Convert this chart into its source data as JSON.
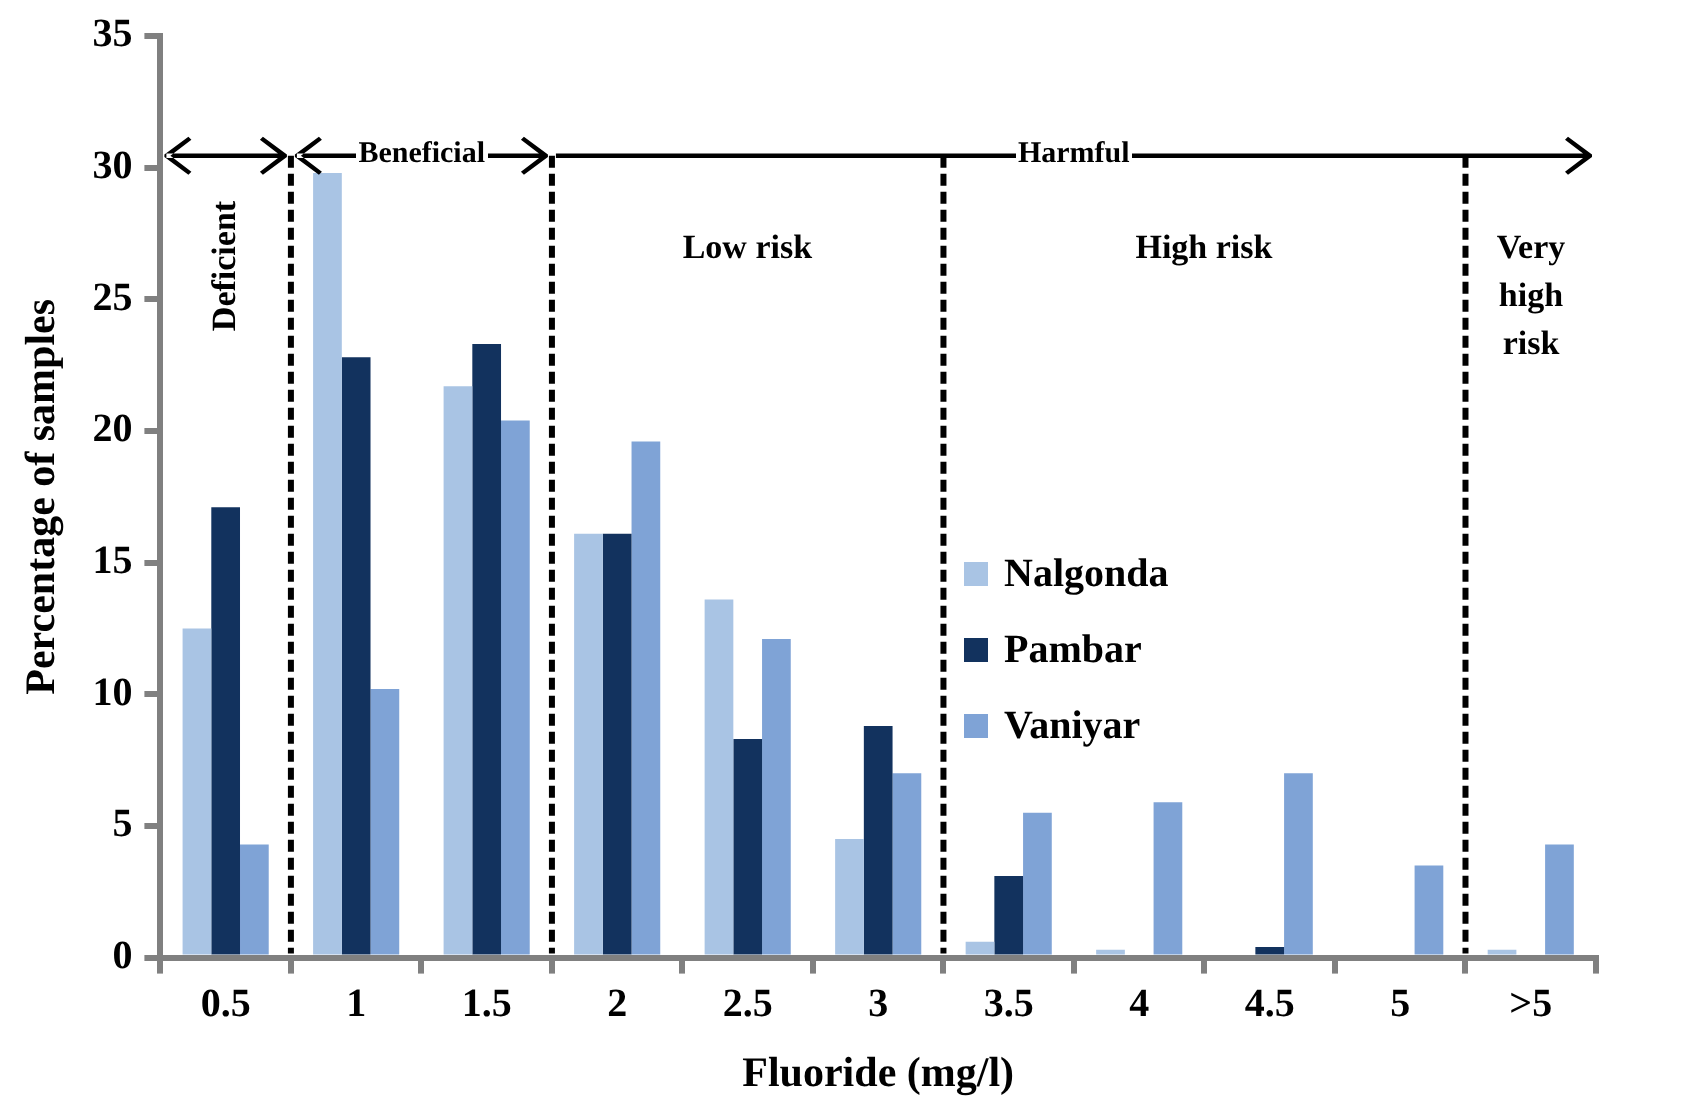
{
  "chart_data": {
    "type": "bar",
    "xlabel": "Fluoride (mg/l)",
    "ylabel": "Percentage of samples",
    "categories": [
      "0.5",
      "1",
      "1.5",
      "2",
      "2.5",
      "3",
      "3.5",
      "4",
      "4.5",
      "5",
      ">5"
    ],
    "series": [
      {
        "name": "Nalgonda",
        "color": "#a9c4e4",
        "values": [
          12.5,
          29.8,
          21.7,
          16.1,
          13.6,
          4.5,
          0.6,
          0.3,
          0,
          0,
          0.3
        ]
      },
      {
        "name": "Pambar",
        "color": "#12325e",
        "values": [
          17.1,
          22.8,
          23.3,
          16.1,
          8.3,
          8.8,
          3.1,
          0,
          0.4,
          0,
          0
        ]
      },
      {
        "name": "Vaniyar",
        "color": "#7fa3d6",
        "values": [
          4.3,
          10.2,
          20.4,
          19.6,
          12.1,
          7.0,
          5.5,
          5.9,
          7.0,
          3.5,
          4.3
        ]
      }
    ],
    "ylim": [
      0,
      35
    ],
    "yticks": [
      0,
      5,
      10,
      15,
      20,
      25,
      30,
      35
    ],
    "legend": "center",
    "annotations": [
      "Deficient",
      "Beneficial",
      "Harmful",
      "Low risk",
      "High risk",
      "Very high risk"
    ]
  }
}
